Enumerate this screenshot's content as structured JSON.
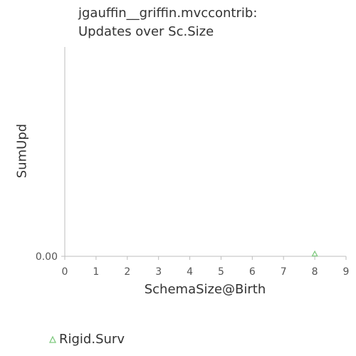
{
  "chart_data": {
    "type": "scatter",
    "title": [
      "jgauffin__griffin.mvccontrib:",
      "Updates over Sc.Size"
    ],
    "xlabel": "SchemaSize@Birth",
    "ylabel": "SumUpd",
    "xlim": [
      0,
      9
    ],
    "x_ticks": [
      "0",
      "1",
      "2",
      "3",
      "4",
      "5",
      "6",
      "7",
      "8",
      "9"
    ],
    "y_ticks": [
      "0.00"
    ],
    "grid": false,
    "legend_position": "bottom-left",
    "series": [
      {
        "name": "Rigid.Surv",
        "marker": "triangle",
        "color": "#7fc97f",
        "points": [
          {
            "x": 8,
            "y": 0
          }
        ]
      }
    ]
  }
}
